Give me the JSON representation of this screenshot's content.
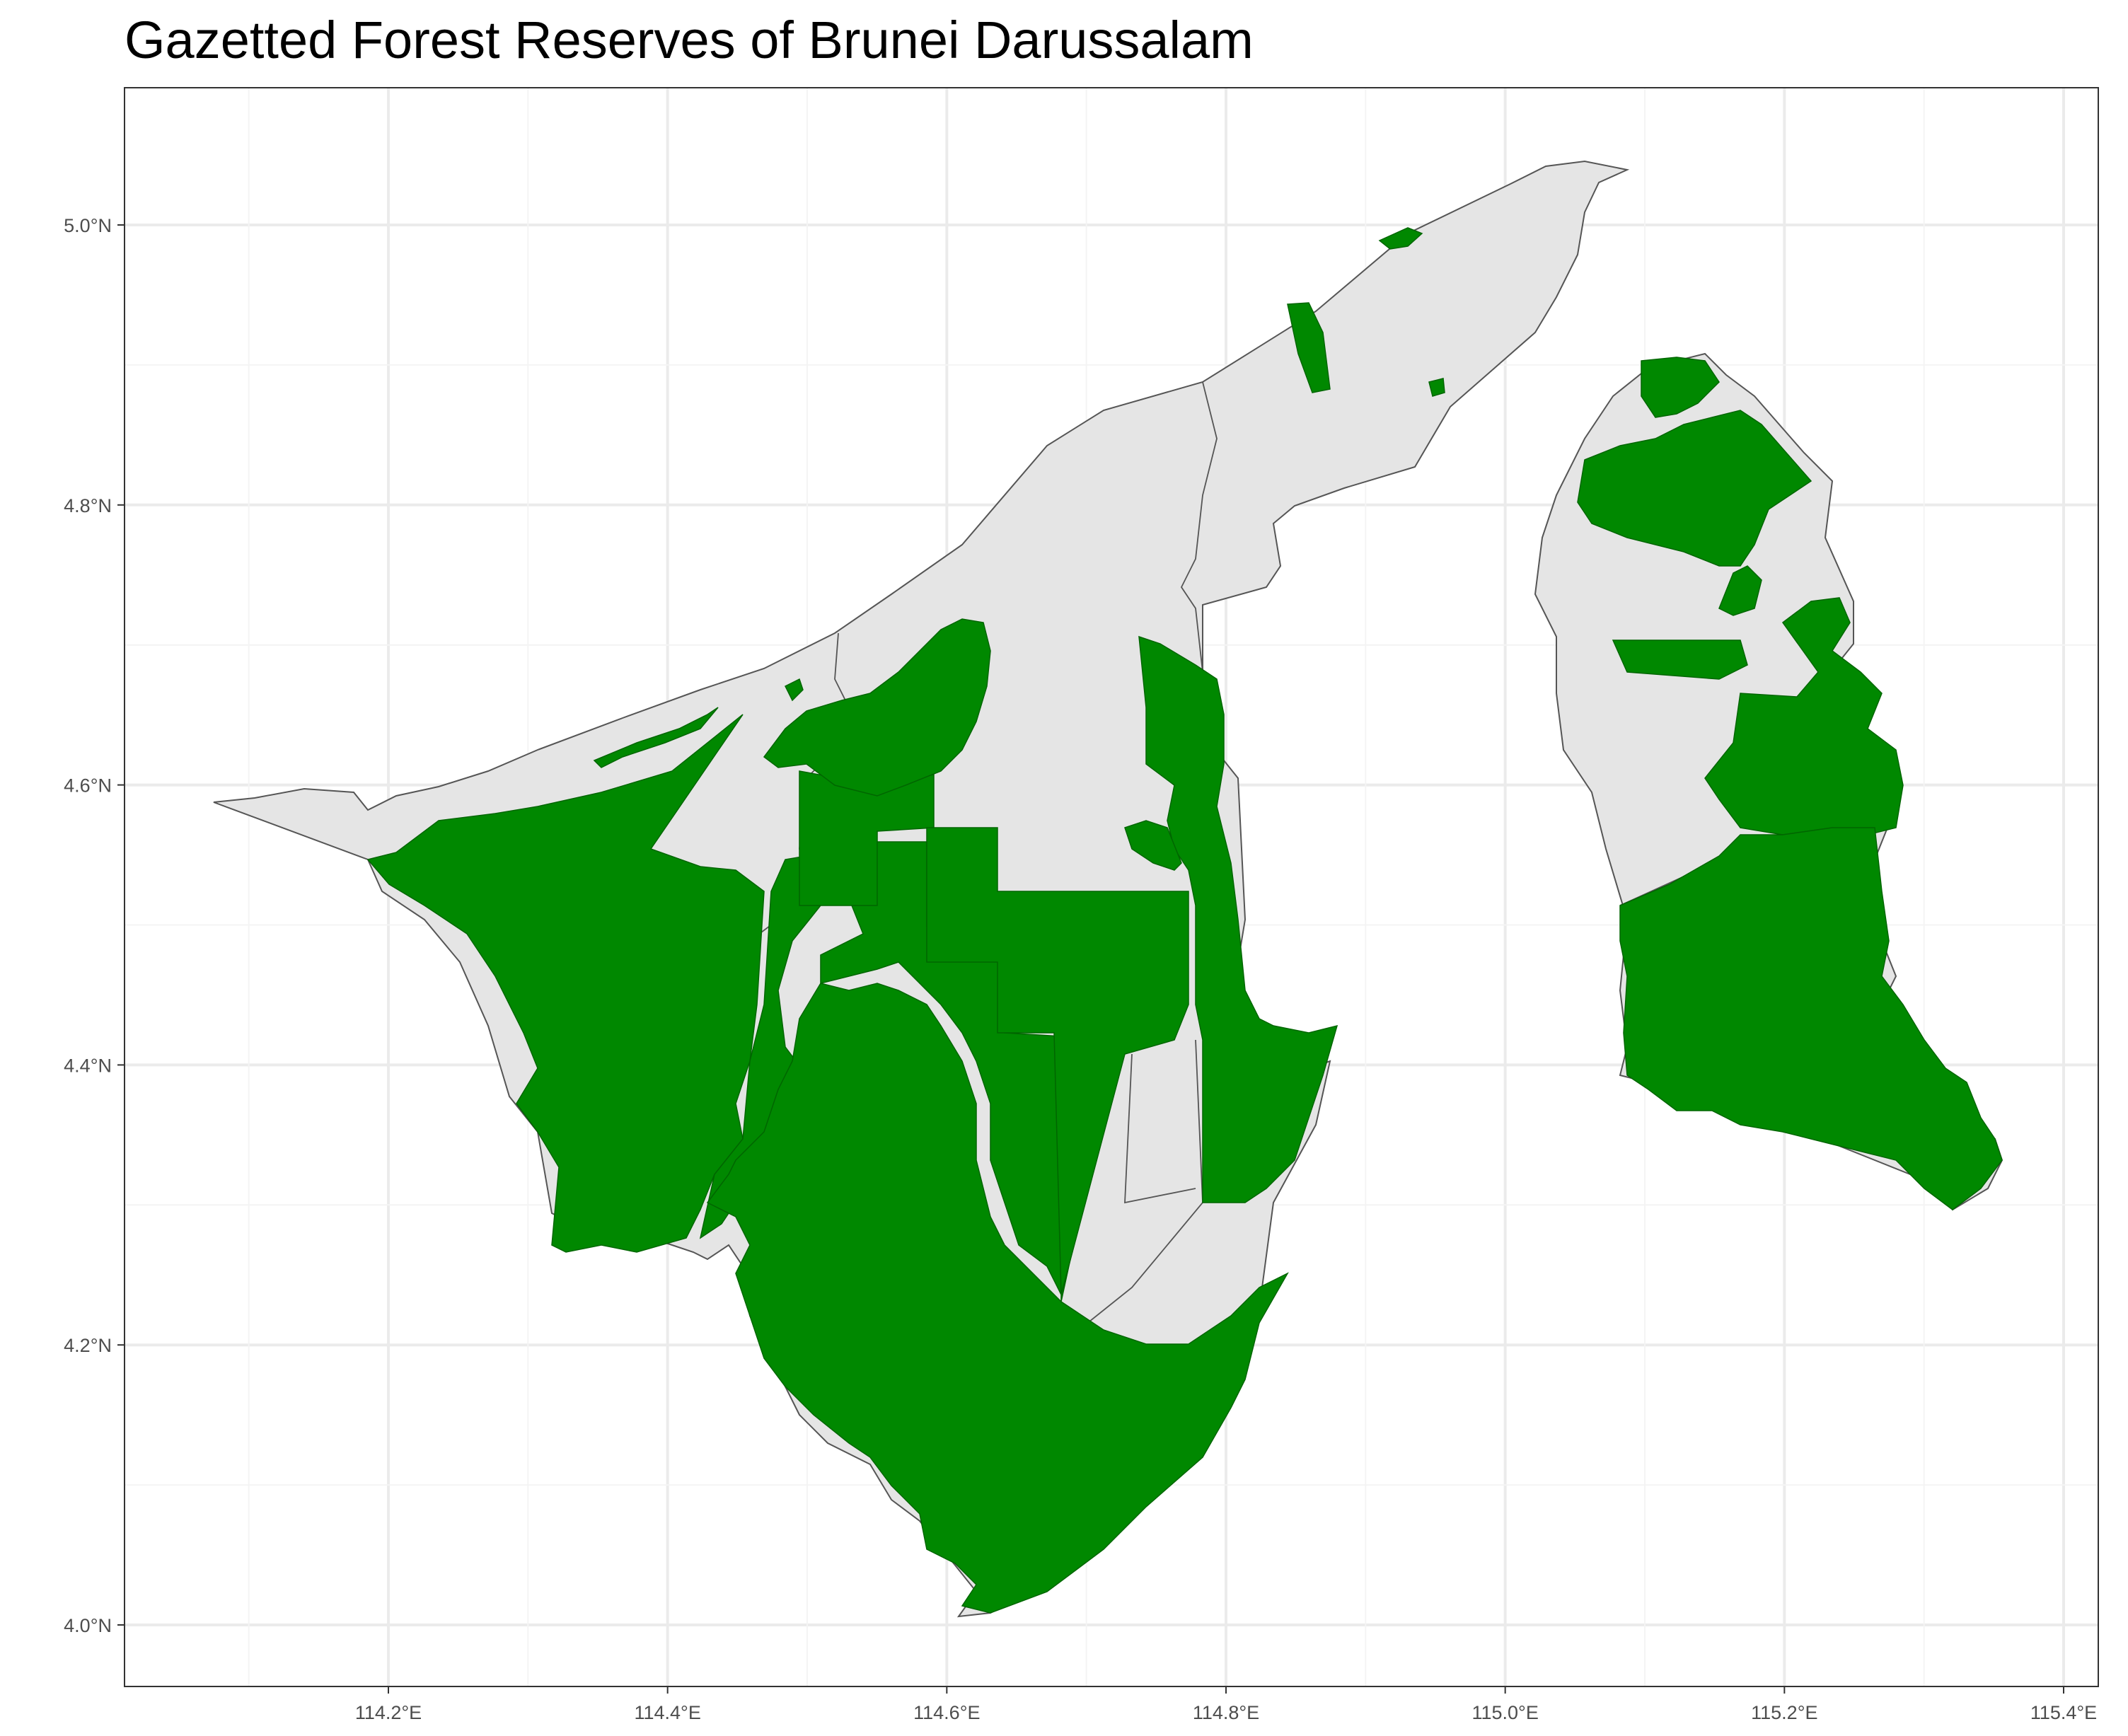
{
  "title": "Gazetted Forest Reserves of Brunei Darussalam",
  "colors": {
    "reserve": "#008800",
    "land": "#e5e5e5",
    "boundary": "#555555",
    "grid": "#ebebeb",
    "panel_border": "#333333"
  },
  "map": {
    "lon_range": [
      114.0,
      115.45
    ],
    "lat_range": [
      3.95,
      5.1
    ]
  },
  "axes": {
    "x_ticks": [
      {
        "value": 114.2,
        "label": "114.2°E"
      },
      {
        "value": 114.4,
        "label": "114.4°E"
      },
      {
        "value": 114.6,
        "label": "114.6°E"
      },
      {
        "value": 114.8,
        "label": "114.8°E"
      },
      {
        "value": 115.0,
        "label": "115.0°E"
      },
      {
        "value": 115.2,
        "label": "115.2°E"
      },
      {
        "value": 115.4,
        "label": "115.4°E"
      }
    ],
    "y_ticks": [
      {
        "value": 4.0,
        "label": "4.0°N"
      },
      {
        "value": 4.2,
        "label": "4.2°N"
      },
      {
        "value": 4.4,
        "label": "4.4°N"
      },
      {
        "value": 4.6,
        "label": "4.6°N"
      },
      {
        "value": 4.8,
        "label": "4.8°N"
      },
      {
        "value": 5.0,
        "label": "5.0°N"
      }
    ]
  },
  "legend": "none"
}
